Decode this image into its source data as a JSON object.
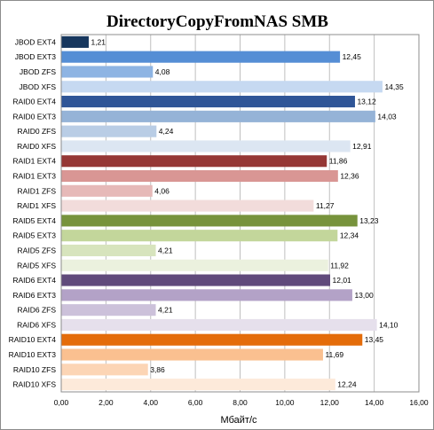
{
  "chart_data": {
    "type": "bar",
    "orientation": "horizontal",
    "title": "DirectoryCopyFromNAS SMB",
    "xlabel": "Мбайт/с",
    "ylabel": "",
    "xlim": [
      0,
      16
    ],
    "x_ticks": [
      "0,00",
      "2,00",
      "4,00",
      "6,00",
      "8,00",
      "10,00",
      "12,00",
      "14,00",
      "16,00"
    ],
    "grid": "vertical",
    "legend": "none",
    "categories": [
      "JBOD EXT4",
      "JBOD EXT3",
      "JBOD ZFS",
      "JBOD XFS",
      "RAID0 EXT4",
      "RAID0 EXT3",
      "RAID0 ZFS",
      "RAID0 XFS",
      "RAID1 EXT4",
      "RAID1 EXT3",
      "RAID1 ZFS",
      "RAID1 XFS",
      "RAID5 EXT4",
      "RAID5 EXT3",
      "RAID5 ZFS",
      "RAID5 XFS",
      "RAID6 EXT4",
      "RAID6 EXT3",
      "RAID6 ZFS",
      "RAID6 XFS",
      "RAID10 EXT4",
      "RAID10 EXT3",
      "RAID10 ZFS",
      "RAID10 XFS"
    ],
    "values": [
      1.21,
      12.45,
      4.08,
      14.35,
      13.12,
      14.03,
      4.24,
      12.91,
      11.86,
      12.36,
      4.06,
      11.27,
      13.23,
      12.34,
      4.21,
      11.92,
      12.01,
      13.0,
      4.21,
      14.1,
      13.45,
      11.69,
      3.86,
      12.24
    ],
    "value_labels": [
      "1,21",
      "12,45",
      "4,08",
      "14,35",
      "13,12",
      "14,03",
      "4,24",
      "12,91",
      "11,86",
      "12,36",
      "4,06",
      "11,27",
      "13,23",
      "12,34",
      "4,21",
      "11,92",
      "12,01",
      "13,00",
      "4,21",
      "14,10",
      "13,45",
      "11,69",
      "3,86",
      "12,24"
    ],
    "colors": [
      "#17375e",
      "#558ed5",
      "#8eb4e3",
      "#c6d9f1",
      "#2f5597",
      "#95b3d7",
      "#b9cde5",
      "#dce6f2",
      "#953735",
      "#d99694",
      "#e6b9b8",
      "#f2dcdb",
      "#77933c",
      "#c3d69b",
      "#d7e4bd",
      "#ebf1de",
      "#604a7b",
      "#b3a2c7",
      "#ccc1da",
      "#e6e0ec",
      "#e46c0a",
      "#fac090",
      "#fcd5b5",
      "#fdeada"
    ]
  }
}
